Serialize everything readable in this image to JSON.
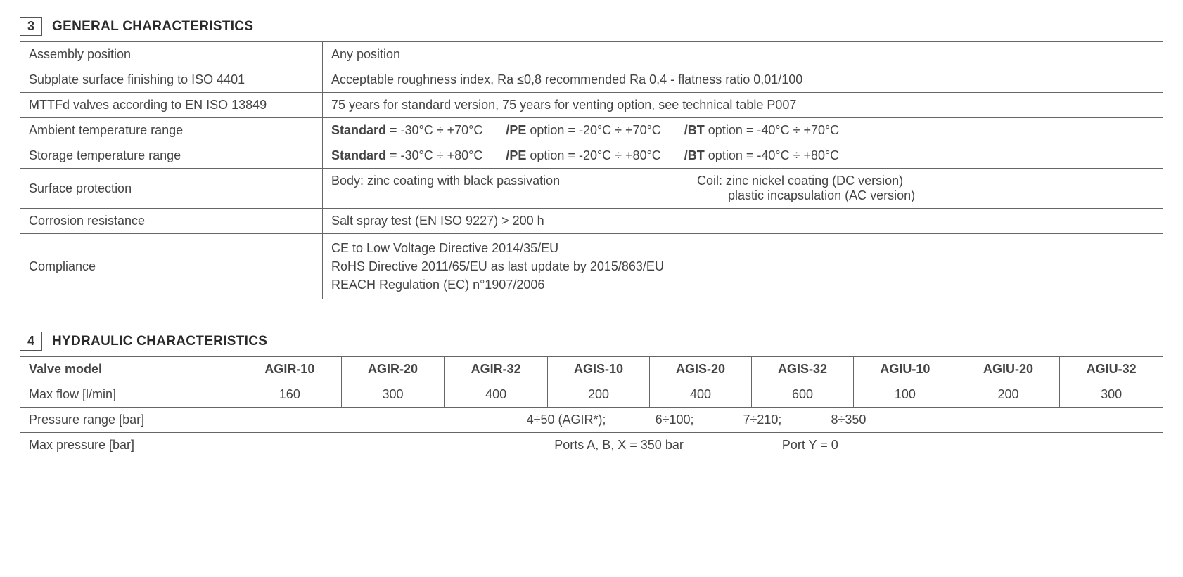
{
  "section3": {
    "num": "3",
    "title": "GENERAL CHARACTERISTICS",
    "rows": {
      "assembly": {
        "label": "Assembly position",
        "value": "Any position"
      },
      "subplate": {
        "label": "Subplate surface finishing to ISO 4401",
        "value": "Acceptable roughness index, Ra ≤0,8 recommended Ra 0,4 - flatness ratio 0,01/100"
      },
      "mttfd": {
        "label": "MTTFd valves according to EN ISO 13849",
        "value": "75 years for standard version, 75 years for venting option, see technical table P007"
      },
      "ambient": {
        "label": "Ambient temperature range",
        "std_lbl": "Standard",
        "std_val": " = -30°C ÷ +70°C",
        "pe_lbl": "/PE",
        "pe_val": " option = -20°C ÷ +70°C",
        "bt_lbl": "/BT",
        "bt_val": " option = -40°C ÷ +70°C"
      },
      "storage": {
        "label": "Storage temperature range",
        "std_lbl": "Standard",
        "std_val": " = -30°C ÷ +80°C",
        "pe_lbl": "/PE",
        "pe_val": " option = -20°C ÷ +80°C",
        "bt_lbl": "/BT",
        "bt_val": " option = -40°C ÷ +80°C"
      },
      "surface": {
        "label": "Surface protection",
        "body": "Body: zinc coating with black passivation",
        "coil1": "Coil: zinc nickel coating (DC version)",
        "coil2": "plastic incapsulation (AC version)"
      },
      "corrosion": {
        "label": "Corrosion resistance",
        "value": "Salt spray test (EN ISO 9227) > 200 h"
      },
      "compliance": {
        "label": "Compliance",
        "line1": "CE to Low Voltage Directive 2014/35/EU",
        "line2": "RoHS Directive 2011/65/EU as last update by 2015/863/EU",
        "line3": "REACH Regulation (EC) n°1907/2006"
      }
    }
  },
  "section4": {
    "num": "4",
    "title": "HYDRAULIC CHARACTERISTICS",
    "header": [
      "Valve model",
      "AGIR-10",
      "AGIR-20",
      "AGIR-32",
      "AGIS-10",
      "AGIS-20",
      "AGIS-32",
      "AGIU-10",
      "AGIU-20",
      "AGIU-32"
    ],
    "maxflow": {
      "label": "Max flow [l/min]",
      "vals": [
        "160",
        "300",
        "400",
        "200",
        "400",
        "600",
        "100",
        "200",
        "300"
      ]
    },
    "prange": {
      "label": "Pressure range [bar]",
      "g1": "4÷50 (AGIR*);",
      "g2": "6÷100;",
      "g3": "7÷210;",
      "g4": "8÷350"
    },
    "maxp": {
      "label": "Max pressure [bar]",
      "g1": "Ports A, B, X  = 350 bar",
      "g2": "Port Y = 0"
    }
  }
}
